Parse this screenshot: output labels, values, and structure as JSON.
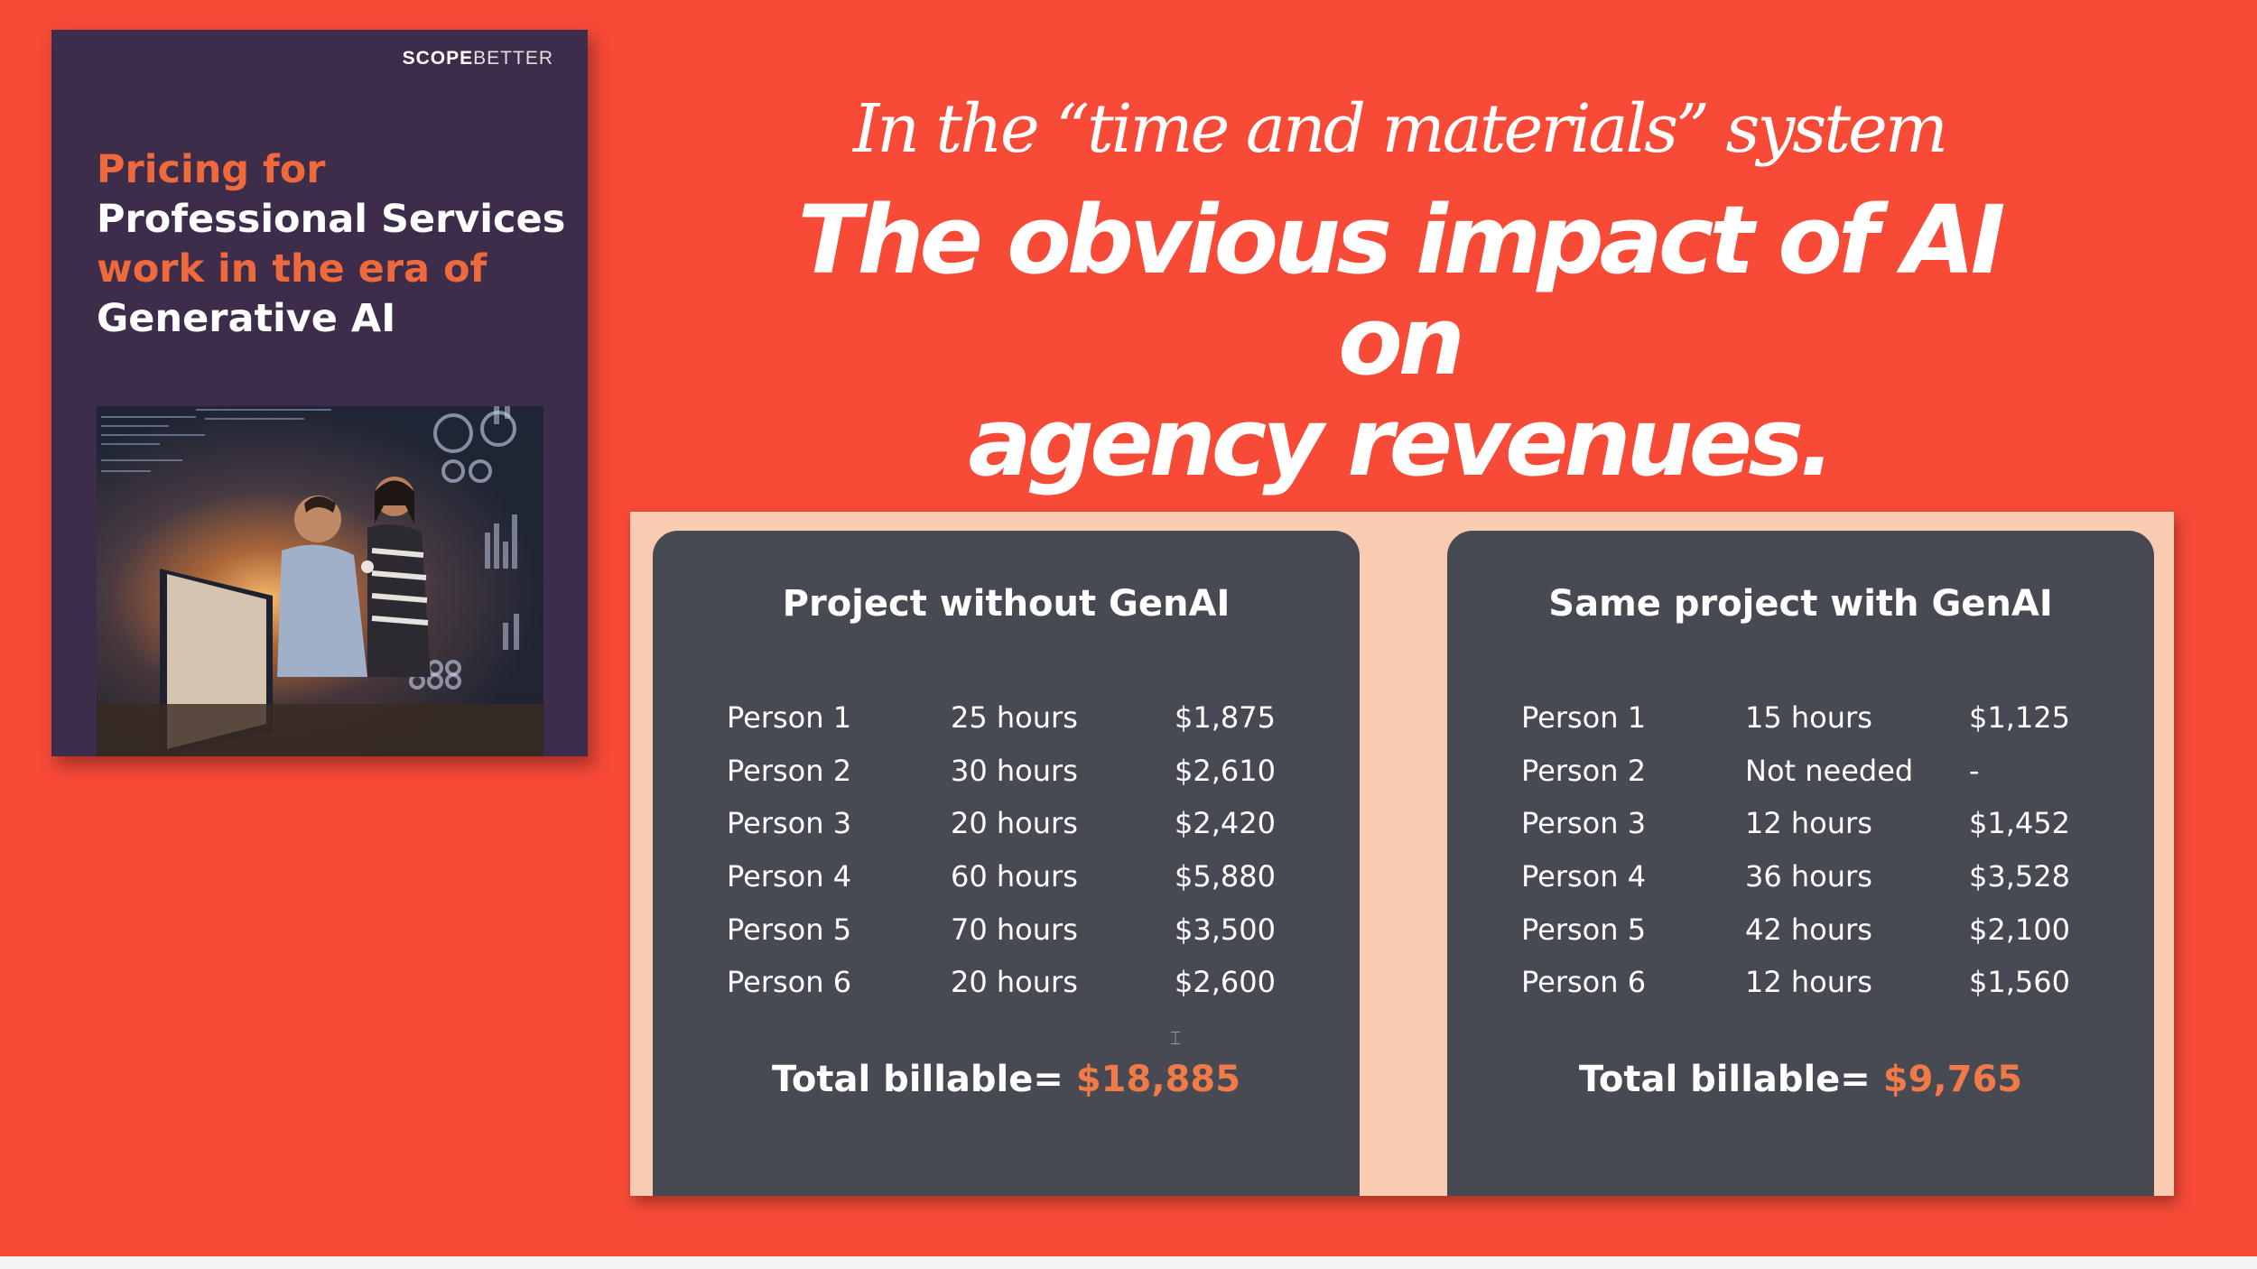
{
  "cover": {
    "logo_strong": "SCOPE",
    "logo_light": "BETTER",
    "title_lines": [
      {
        "text": "Pricing for",
        "color": "orange"
      },
      {
        "text": "Professional Services",
        "color": "white"
      },
      {
        "text": "work in the era of",
        "color": "orange"
      },
      {
        "text": "Generative AI",
        "color": "white"
      }
    ]
  },
  "heading": {
    "subtitle": "In the “time and materials” system",
    "headline_line1": "The obvious impact of AI on",
    "headline_line2": "agency revenues."
  },
  "without_genai": {
    "title": "Project without GenAI",
    "rows": [
      {
        "person": "Person 1",
        "hours": "25 hours",
        "amount": "$1,875"
      },
      {
        "person": "Person 2",
        "hours": "30 hours",
        "amount": "$2,610"
      },
      {
        "person": "Person 3",
        "hours": "20 hours",
        "amount": "$2,420"
      },
      {
        "person": "Person 4",
        "hours": "60 hours",
        "amount": "$5,880"
      },
      {
        "person": "Person 5",
        "hours": "70 hours",
        "amount": "$3,500"
      },
      {
        "person": "Person 6",
        "hours": "20 hours",
        "amount": "$2,600"
      }
    ],
    "total_label": "Total billable=",
    "total_value": "$18,885"
  },
  "with_genai": {
    "title": "Same project with GenAI",
    "rows": [
      {
        "person": "Person 1",
        "hours": "15 hours",
        "amount": "$1,125"
      },
      {
        "person": "Person 2",
        "hours": "Not needed",
        "amount": "-"
      },
      {
        "person": "Person 3",
        "hours": "12 hours",
        "amount": "$1,452"
      },
      {
        "person": "Person 4",
        "hours": "36 hours",
        "amount": "$3,528"
      },
      {
        "person": "Person 5",
        "hours": "42 hours",
        "amount": "$2,100"
      },
      {
        "person": "Person 6",
        "hours": "12 hours",
        "amount": "$1,560"
      }
    ],
    "total_label": "Total billable=",
    "total_value": "$9,765"
  },
  "colors": {
    "background": "#f74a37",
    "cover": "#3d2c4a",
    "card": "#474953",
    "panel": "#f9ccb1",
    "accent": "#f07a48"
  }
}
